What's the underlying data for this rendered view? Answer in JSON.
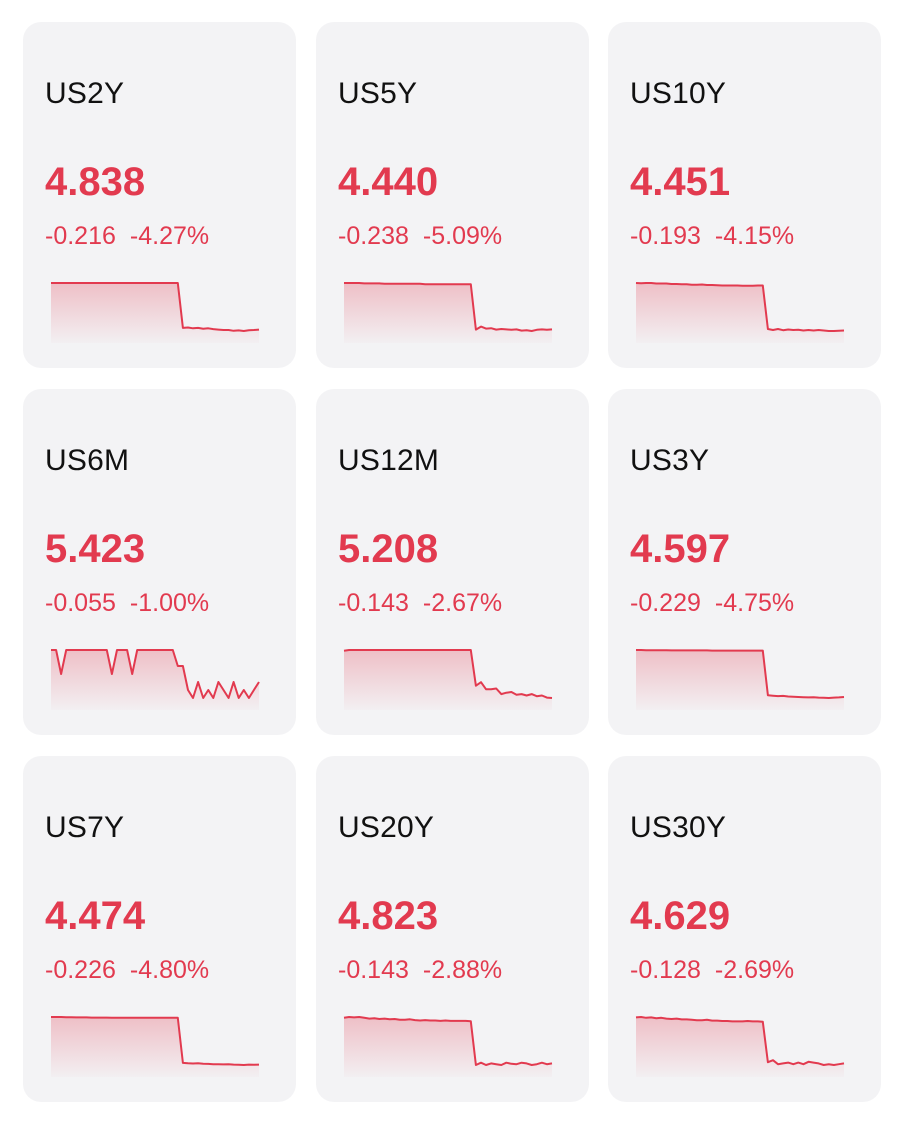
{
  "theme": {
    "card_bg": "#f3f3f5",
    "negative_color": "#e23a4f",
    "text_color": "#111111"
  },
  "cards": [
    {
      "symbol": "US2Y",
      "price": "4.838",
      "change": "-0.216",
      "change_pct": "-4.27%",
      "chart_data": {
        "type": "area",
        "values": [
          4.838,
          4.838,
          4.838,
          4.838,
          4.838,
          4.838,
          4.838,
          4.838,
          4.838,
          4.838,
          4.838,
          4.838,
          4.838,
          4.838,
          4.838,
          4.838,
          4.838,
          4.838,
          4.838,
          4.838,
          4.838,
          4.838,
          4.838,
          4.838,
          4.838,
          4.838,
          4.62,
          4.622,
          4.618,
          4.62,
          4.616,
          4.618,
          4.614,
          4.612,
          4.61,
          4.61,
          4.606,
          4.608,
          4.605,
          4.609,
          4.61,
          4.612
        ]
      }
    },
    {
      "symbol": "US5Y",
      "price": "4.440",
      "change": "-0.238",
      "change_pct": "-5.09%",
      "chart_data": {
        "type": "area",
        "values": [
          4.44,
          4.44,
          4.44,
          4.44,
          4.438,
          4.438,
          4.438,
          4.438,
          4.436,
          4.436,
          4.436,
          4.436,
          4.436,
          4.436,
          4.436,
          4.436,
          4.434,
          4.434,
          4.434,
          4.434,
          4.434,
          4.434,
          4.434,
          4.434,
          4.434,
          4.434,
          4.205,
          4.22,
          4.21,
          4.212,
          4.205,
          4.208,
          4.206,
          4.204,
          4.206,
          4.2,
          4.202,
          4.198,
          4.204,
          4.206,
          4.204,
          4.206
        ]
      }
    },
    {
      "symbol": "US10Y",
      "price": "4.451",
      "change": "-0.193",
      "change_pct": "-4.15%",
      "chart_data": {
        "type": "area",
        "values": [
          4.451,
          4.45,
          4.451,
          4.451,
          4.449,
          4.449,
          4.449,
          4.447,
          4.447,
          4.446,
          4.446,
          4.444,
          4.444,
          4.445,
          4.443,
          4.443,
          4.442,
          4.441,
          4.441,
          4.441,
          4.441,
          4.44,
          4.44,
          4.44,
          4.441,
          4.441,
          4.27,
          4.266,
          4.27,
          4.265,
          4.268,
          4.266,
          4.267,
          4.264,
          4.266,
          4.264,
          4.266,
          4.264,
          4.262,
          4.262,
          4.263,
          4.264
        ]
      }
    },
    {
      "symbol": "US6M",
      "price": "5.423",
      "change": "-0.055",
      "change_pct": "-1.00%",
      "chart_data": {
        "type": "area",
        "values": [
          5.42,
          5.42,
          5.39,
          5.42,
          5.42,
          5.42,
          5.42,
          5.42,
          5.42,
          5.42,
          5.42,
          5.42,
          5.39,
          5.42,
          5.42,
          5.42,
          5.39,
          5.42,
          5.42,
          5.42,
          5.42,
          5.42,
          5.42,
          5.42,
          5.42,
          5.4,
          5.4,
          5.37,
          5.36,
          5.38,
          5.36,
          5.37,
          5.36,
          5.38,
          5.37,
          5.36,
          5.38,
          5.36,
          5.37,
          5.36,
          5.37,
          5.38
        ]
      }
    },
    {
      "symbol": "US12M",
      "price": "5.208",
      "change": "-0.143",
      "change_pct": "-2.67%",
      "chart_data": {
        "type": "area",
        "values": [
          5.2,
          5.202,
          5.202,
          5.202,
          5.202,
          5.202,
          5.202,
          5.202,
          5.202,
          5.202,
          5.202,
          5.202,
          5.202,
          5.202,
          5.202,
          5.202,
          5.202,
          5.202,
          5.202,
          5.202,
          5.202,
          5.202,
          5.202,
          5.202,
          5.202,
          5.202,
          5.1,
          5.11,
          5.09,
          5.09,
          5.092,
          5.076,
          5.08,
          5.082,
          5.074,
          5.076,
          5.072,
          5.076,
          5.07,
          5.072,
          5.066,
          5.065
        ]
      }
    },
    {
      "symbol": "US3Y",
      "price": "4.597",
      "change": "-0.229",
      "change_pct": "-4.75%",
      "chart_data": {
        "type": "area",
        "values": [
          4.597,
          4.597,
          4.596,
          4.596,
          4.596,
          4.596,
          4.596,
          4.595,
          4.595,
          4.595,
          4.595,
          4.595,
          4.595,
          4.595,
          4.595,
          4.594,
          4.594,
          4.594,
          4.594,
          4.594,
          4.594,
          4.594,
          4.594,
          4.594,
          4.594,
          4.594,
          4.38,
          4.378,
          4.376,
          4.377,
          4.374,
          4.373,
          4.372,
          4.371,
          4.37,
          4.371,
          4.369,
          4.368,
          4.367,
          4.369,
          4.37,
          4.372
        ]
      }
    },
    {
      "symbol": "US7Y",
      "price": "4.474",
      "change": "-0.226",
      "change_pct": "-4.80%",
      "chart_data": {
        "type": "area",
        "values": [
          4.474,
          4.474,
          4.474,
          4.473,
          4.473,
          4.472,
          4.472,
          4.472,
          4.471,
          4.471,
          4.471,
          4.471,
          4.47,
          4.47,
          4.47,
          4.47,
          4.47,
          4.47,
          4.47,
          4.47,
          4.47,
          4.47,
          4.47,
          4.47,
          4.47,
          4.47,
          4.258,
          4.256,
          4.255,
          4.256,
          4.254,
          4.253,
          4.252,
          4.252,
          4.251,
          4.252,
          4.25,
          4.249,
          4.248,
          4.25,
          4.249,
          4.25
        ]
      }
    },
    {
      "symbol": "US20Y",
      "price": "4.823",
      "change": "-0.143",
      "change_pct": "-2.88%",
      "chart_data": {
        "type": "area",
        "values": [
          4.821,
          4.823,
          4.822,
          4.823,
          4.821,
          4.819,
          4.82,
          4.818,
          4.819,
          4.817,
          4.818,
          4.816,
          4.816,
          4.817,
          4.815,
          4.814,
          4.815,
          4.814,
          4.814,
          4.813,
          4.814,
          4.813,
          4.813,
          4.813,
          4.813,
          4.812,
          4.7,
          4.706,
          4.7,
          4.704,
          4.702,
          4.7,
          4.706,
          4.703,
          4.702,
          4.706,
          4.704,
          4.7,
          4.702,
          4.706,
          4.702,
          4.704
        ]
      }
    },
    {
      "symbol": "US30Y",
      "price": "4.629",
      "change": "-0.128",
      "change_pct": "-2.69%",
      "chart_data": {
        "type": "area",
        "values": [
          4.628,
          4.629,
          4.627,
          4.628,
          4.626,
          4.627,
          4.625,
          4.624,
          4.625,
          4.623,
          4.623,
          4.622,
          4.621,
          4.621,
          4.622,
          4.62,
          4.62,
          4.619,
          4.619,
          4.618,
          4.618,
          4.618,
          4.619,
          4.618,
          4.618,
          4.617,
          4.515,
          4.52,
          4.51,
          4.512,
          4.514,
          4.51,
          4.514,
          4.51,
          4.516,
          4.514,
          4.512,
          4.508,
          4.51,
          4.508,
          4.51,
          4.512
        ]
      }
    }
  ]
}
